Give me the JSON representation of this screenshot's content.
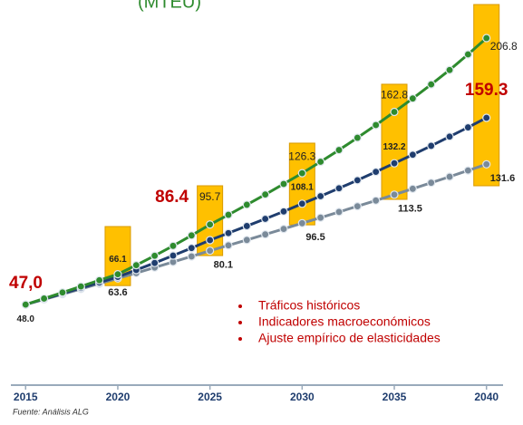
{
  "chart_data": {
    "type": "line",
    "title": "(MTEU)",
    "x": [
      2015,
      2016,
      2017,
      2018,
      2019,
      2020,
      2021,
      2022,
      2023,
      2024,
      2025,
      2026,
      2027,
      2028,
      2029,
      2030,
      2031,
      2032,
      2033,
      2034,
      2035,
      2036,
      2037,
      2038,
      2039,
      2040
    ],
    "xlim": [
      2014.2,
      2040.9
    ],
    "xticks": [
      2015,
      2020,
      2025,
      2030,
      2035,
      2040
    ],
    "ylim": [
      0,
      229.5
    ],
    "series": [
      {
        "color": "#2e8b2e",
        "label_position": "above",
        "values": [
          48.0,
          51.6,
          55.2,
          58.8,
          62.5,
          66.1,
          71.5,
          77.1,
          83.0,
          89.2,
          95.7,
          101.5,
          107.5,
          113.6,
          119.9,
          126.3,
          133.1,
          140.1,
          147.4,
          155.0,
          162.8,
          170.8,
          179.2,
          187.8,
          197.1,
          206.8
        ],
        "value_labels": [
          null,
          null,
          null,
          null,
          null,
          "66.1",
          null,
          null,
          null,
          null,
          "95.7",
          null,
          null,
          null,
          null,
          "126.3",
          null,
          null,
          null,
          null,
          "162.8",
          null,
          null,
          null,
          null,
          "206.8"
        ]
      },
      {
        "color": "#1f3d6e",
        "label_position": "above",
        "highlight": [
          10,
          25
        ],
        "highlight_color": "#c00000",
        "values": [
          48.0,
          51.3,
          54.6,
          57.9,
          61.2,
          64.5,
          68.6,
          72.8,
          77.2,
          81.7,
          86.4,
          90.6,
          94.8,
          99.1,
          103.5,
          108.1,
          112.6,
          117.3,
          122.1,
          127.1,
          132.2,
          137.3,
          142.6,
          148.1,
          153.6,
          159.3
        ],
        "value_labels": [
          "48.0",
          null,
          null,
          null,
          null,
          null,
          null,
          null,
          null,
          null,
          "86.4",
          null,
          null,
          null,
          null,
          "108.1",
          null,
          null,
          null,
          null,
          "132.2",
          null,
          null,
          null,
          null,
          "159.3"
        ]
      },
      {
        "color": "#7a8a99",
        "label_position": "below",
        "values": [
          48.0,
          51.1,
          54.2,
          57.3,
          60.5,
          63.6,
          66.8,
          70.1,
          73.4,
          76.7,
          80.1,
          83.3,
          86.5,
          89.8,
          93.1,
          96.5,
          99.8,
          103.2,
          106.6,
          110.0,
          113.5,
          117.0,
          120.6,
          124.2,
          127.9,
          131.6
        ],
        "value_labels": [
          null,
          null,
          null,
          null,
          null,
          "63.6",
          null,
          null,
          null,
          null,
          "80.1",
          null,
          null,
          null,
          null,
          "96.5",
          null,
          null,
          null,
          null,
          "113.5",
          null,
          null,
          null,
          null,
          "131.6"
        ]
      }
    ],
    "ranges": {
      "color": "#ffc000",
      "x": [
        2020,
        2025,
        2030,
        2035,
        2040
      ],
      "low": [
        59.3,
        77.2,
        95.5,
        110.7,
        118.8
      ],
      "high": [
        94.5,
        118.8,
        144.2,
        179.3,
        226.8
      ]
    },
    "annotation": {
      "text": "47,0",
      "color": "#c00000"
    },
    "notes": {
      "color": "#c00000",
      "items": [
        "Tráficos históricos",
        "Indicadores macroeconómicos",
        "Ajuste empírico de elasticidades"
      ]
    },
    "source": "Fuente: Análisis ALG"
  }
}
